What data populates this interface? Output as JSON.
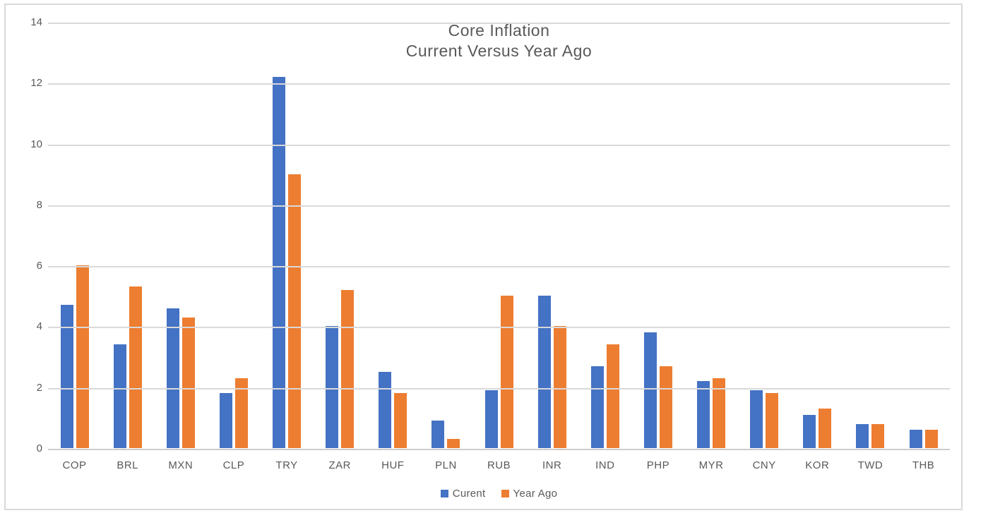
{
  "chart_data": {
    "type": "bar",
    "title_line1": "Core Inflation",
    "title_line2": "Current Versus Year Ago",
    "categories": [
      "COP",
      "BRL",
      "MXN",
      "CLP",
      "TRY",
      "ZAR",
      "HUF",
      "PLN",
      "RUB",
      "INR",
      "IND",
      "PHP",
      "MYR",
      "CNY",
      "KOR",
      "TWD",
      "THB"
    ],
    "series": [
      {
        "name": "Curent",
        "color": "#4472C4",
        "values": [
          4.7,
          3.4,
          4.6,
          1.8,
          12.2,
          4.0,
          2.5,
          0.9,
          1.9,
          5.0,
          2.7,
          3.8,
          2.2,
          1.9,
          1.1,
          0.8,
          0.6
        ]
      },
      {
        "name": "Year Ago",
        "color": "#ED7D31",
        "values": [
          6.0,
          5.3,
          4.3,
          2.3,
          9.0,
          5.2,
          1.8,
          0.3,
          5.0,
          4.0,
          3.4,
          2.7,
          2.3,
          1.8,
          1.3,
          0.8,
          0.6
        ]
      }
    ],
    "ylim": [
      0,
      14
    ],
    "yticks": [
      0,
      2,
      4,
      6,
      8,
      10,
      12,
      14
    ],
    "grid": true,
    "legend_position": "bottom",
    "text_color": "#595959",
    "gridline_color": "#D9D9D9"
  }
}
